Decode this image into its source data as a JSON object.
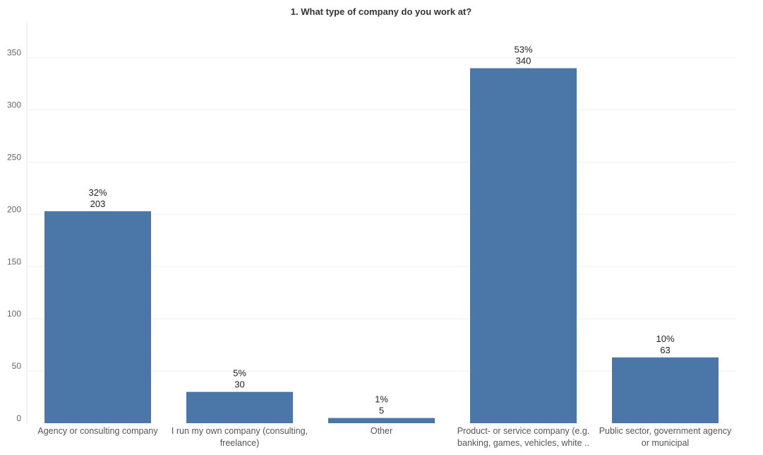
{
  "chart_data": {
    "type": "bar",
    "title": "1. What type of company do you work at?",
    "categories": [
      "Agency or consulting company",
      "I run my own company (consulting, freelance)",
      "Other",
      "Product- or service company (e.g. banking, games, vehicles, white ..",
      "Public sector, government agency or municipal"
    ],
    "values": [
      203,
      30,
      5,
      340,
      63
    ],
    "percent_labels": [
      "32%",
      "5%",
      "1%",
      "53%",
      "10%"
    ],
    "value_labels": [
      "203",
      "30",
      "5",
      "340",
      "63"
    ],
    "yticks": [
      "0",
      "50",
      "100",
      "150",
      "200",
      "250",
      "300",
      "350"
    ],
    "ylim": [
      0,
      385
    ],
    "grid": true,
    "bar_color": "#4a77a8"
  }
}
